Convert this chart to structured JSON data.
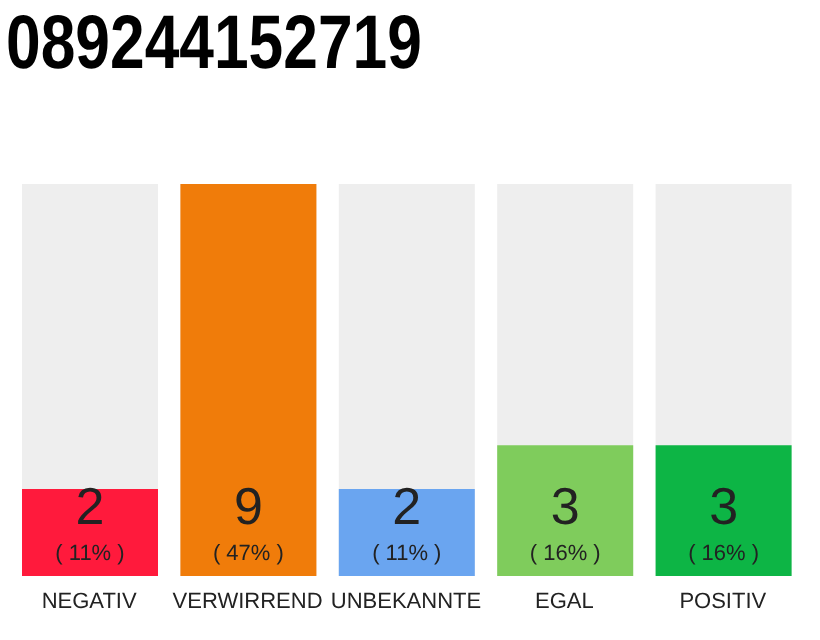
{
  "chart_data": {
    "type": "bar",
    "title": "089244152719",
    "categories": [
      "NEGATIV",
      "VERWIRREND",
      "UNBEKANNTE",
      "EGAL",
      "POSITIV"
    ],
    "values": [
      2,
      9,
      2,
      3,
      3
    ],
    "colors": [
      "#ff1a3c",
      "#f07c0a",
      "#6aa5f0",
      "#7fcc5c",
      "#0db545"
    ],
    "value_labels": [
      "2",
      "9",
      "2",
      "3",
      "3"
    ],
    "annotations": [
      {
        "text": "( 11% )",
        "x": "NEGATIV",
        "y": 0
      },
      {
        "text": "( 47% )",
        "x": "VERWIRREND",
        "y": 0
      },
      {
        "text": "( 11% )",
        "x": "UNBEKANNTE",
        "y": 0
      },
      {
        "text": "( 16% )",
        "x": "EGAL",
        "y": 0
      },
      {
        "text": "( 16% )",
        "x": "POSITIV",
        "y": 0
      }
    ],
    "tick_labels": "x"
  }
}
